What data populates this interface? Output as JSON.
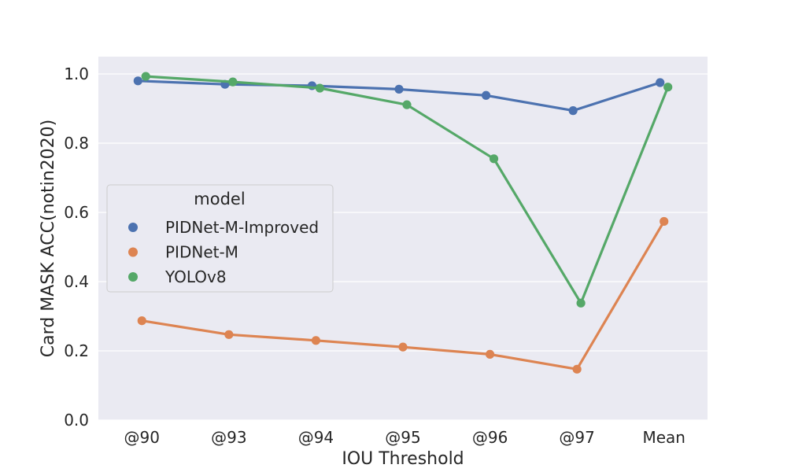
{
  "chart_data": {
    "type": "line",
    "xlabel": "IOU Threshold",
    "ylabel": "Card MASK ACC(notin2020)",
    "categories": [
      "@90",
      "@93",
      "@94",
      "@95",
      "@96",
      "@97",
      "Mean"
    ],
    "ylim": [
      0.0,
      1.05
    ],
    "yticks": [
      "0.0",
      "0.2",
      "0.4",
      "0.6",
      "0.8",
      "1.0"
    ],
    "grid": true,
    "legend": {
      "title": "model",
      "placement": "center-left"
    },
    "series": [
      {
        "name": "PIDNet-M-Improved",
        "color": "#4c72b0",
        "values": [
          0.98,
          0.97,
          0.966,
          0.956,
          0.938,
          0.894,
          0.975
        ]
      },
      {
        "name": "PIDNet-M",
        "color": "#dd8452",
        "values": [
          0.287,
          0.247,
          0.23,
          0.211,
          0.19,
          0.147,
          0.574
        ]
      },
      {
        "name": "YOLOv8",
        "color": "#55a868",
        "values": [
          0.993,
          0.977,
          0.959,
          0.911,
          0.755,
          0.338,
          0.962
        ]
      }
    ]
  }
}
